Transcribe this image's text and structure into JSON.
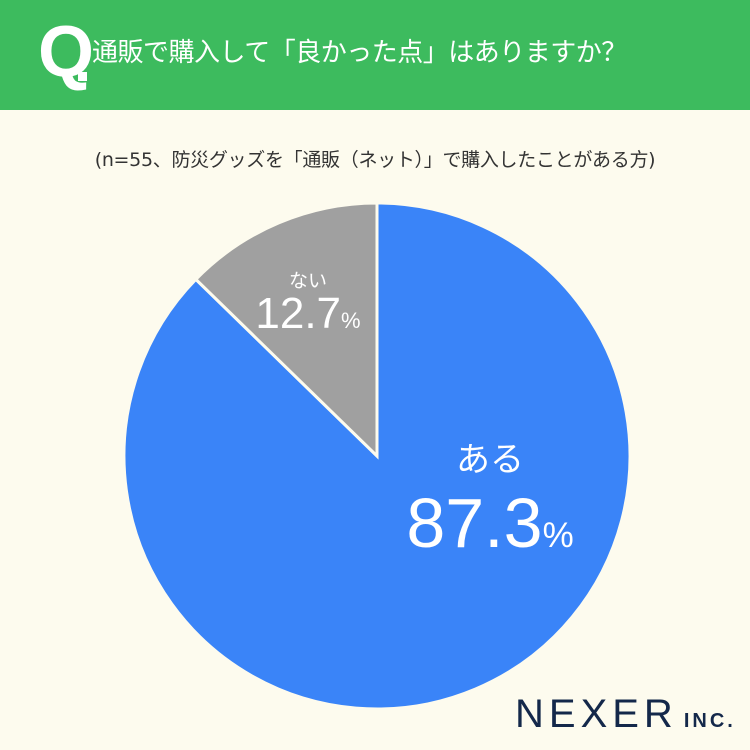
{
  "header": {
    "q_mark": "Q",
    "title": "通販で購入して「良かった点」はありますか？",
    "bg_color": "#3dbb5e"
  },
  "subtitle": "(n=55、防災グッズを「通販（ネット）」で購入したことがある方)",
  "labels": {
    "no_name": "ない",
    "no_value": "12.7",
    "yes_name": "ある",
    "yes_value": "87.3",
    "pct_sign": "%"
  },
  "logo": {
    "name": "NEXER",
    "suffix": "INC."
  },
  "chart_data": {
    "type": "pie",
    "title": "通販で購入して「良かった点」はありますか？",
    "subtitle": "(n=55、防災グッズを「通販（ネット）」で購入したことがある方)",
    "categories": [
      "ある",
      "ない"
    ],
    "values": [
      87.3,
      12.7
    ],
    "unit": "%",
    "colors": [
      "#3a84f8",
      "#a0a0a0"
    ],
    "start_angle": "12 o'clock, ある clockwise",
    "legend": "none (labels inside slices)"
  }
}
